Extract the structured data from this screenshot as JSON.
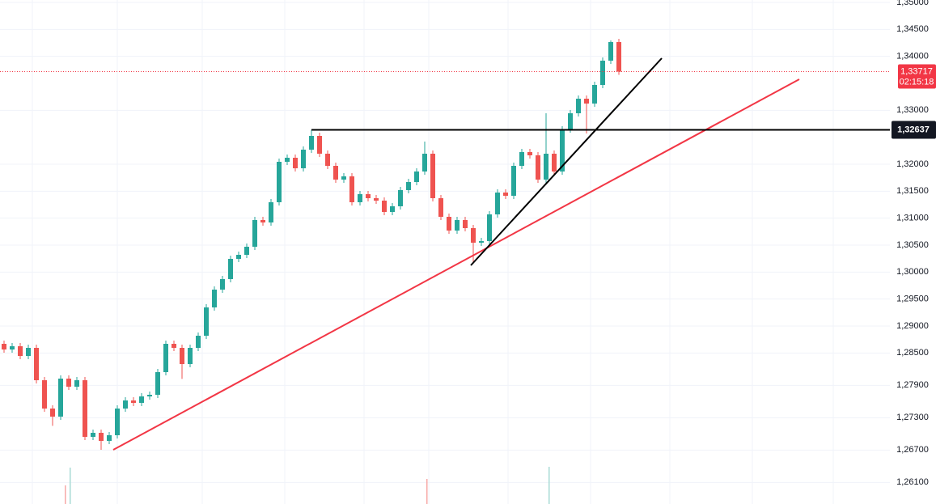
{
  "chart_data": {
    "type": "candlestick",
    "open": [
      1.2867,
      1.28565,
      1.28625,
      1.28445,
      1.28595,
      1.27995,
      1.2747,
      1.2732,
      1.28025,
      1.27875,
      1.27995,
      1.26945,
      1.2702,
      1.2687,
      1.26975,
      1.2747,
      1.2762,
      1.27575,
      1.27695,
      1.27725,
      1.28145,
      1.2867,
      1.28595,
      1.28295,
      1.28595,
      1.2882,
      1.29345,
      1.29675,
      1.2987,
      1.30245,
      1.3032,
      1.3047,
      1.30965,
      1.3092,
      1.31295,
      1.32045,
      1.3212,
      1.31925,
      1.3227,
      1.32525,
      1.32195,
      1.3197,
      1.31715,
      1.31775,
      1.31295,
      1.31445,
      1.3137,
      1.31325,
      1.31115,
      1.3122,
      1.3152,
      1.3167,
      1.31865,
      1.32195,
      1.3137,
      1.31025,
      1.3077,
      1.30965,
      1.30815,
      1.30545,
      1.30575,
      1.3107,
      1.31475,
      1.31415,
      1.3197,
      1.32225,
      1.32165,
      1.31715,
      1.32195,
      1.31865,
      1.32645,
      1.32945,
      1.33215,
      1.33125,
      1.3347,
      1.3392,
      1.34265
    ],
    "high": [
      1.2873,
      1.28685,
      1.28685,
      1.28655,
      1.28655,
      1.28055,
      1.2753,
      1.28085,
      1.28085,
      1.28055,
      1.28055,
      1.2708,
      1.2708,
      1.27035,
      1.2753,
      1.2768,
      1.2768,
      1.27755,
      1.27785,
      1.28205,
      1.2873,
      1.2873,
      1.28655,
      1.28655,
      1.2888,
      1.29405,
      1.29735,
      1.2993,
      1.30305,
      1.3038,
      1.3053,
      1.31025,
      1.31025,
      1.31355,
      1.32105,
      1.3218,
      1.3218,
      1.3233,
      1.32637,
      1.32585,
      1.32255,
      1.3203,
      1.31835,
      1.31835,
      1.31505,
      1.31505,
      1.3143,
      1.31385,
      1.3128,
      1.3158,
      1.3173,
      1.31925,
      1.3242,
      1.32255,
      1.3143,
      1.31085,
      1.31025,
      1.31025,
      1.30875,
      1.30635,
      1.3113,
      1.31535,
      1.31535,
      1.3203,
      1.32285,
      1.32285,
      1.32225,
      1.32945,
      1.32255,
      1.32705,
      1.33005,
      1.33275,
      1.33275,
      1.3353,
      1.3398,
      1.34295,
      1.34325
    ],
    "low": [
      1.28505,
      1.28505,
      1.28385,
      1.28385,
      1.27935,
      1.2741,
      1.2715,
      1.2726,
      1.27815,
      1.27815,
      1.26885,
      1.26885,
      1.26705,
      1.2681,
      1.26915,
      1.2741,
      1.27515,
      1.27515,
      1.27635,
      1.27665,
      1.28085,
      1.28535,
      1.2802,
      1.28235,
      1.28535,
      1.2876,
      1.29285,
      1.29615,
      1.2981,
      1.30185,
      1.3026,
      1.3041,
      1.3086,
      1.3086,
      1.31235,
      1.31985,
      1.31865,
      1.31865,
      1.3221,
      1.32135,
      1.3191,
      1.31655,
      1.31655,
      1.31235,
      1.31235,
      1.3131,
      1.31265,
      1.31055,
      1.31055,
      1.3116,
      1.3146,
      1.3161,
      1.31805,
      1.3131,
      1.30965,
      1.3071,
      1.3071,
      1.30755,
      1.3017,
      1.30485,
      1.30515,
      1.3101,
      1.31355,
      1.31355,
      1.3191,
      1.32105,
      1.31655,
      1.31655,
      1.31805,
      1.31805,
      1.32585,
      1.32885,
      1.3257,
      1.33065,
      1.3341,
      1.3386,
      1.33657
    ],
    "close": [
      1.28565,
      1.28625,
      1.28445,
      1.28595,
      1.27995,
      1.2747,
      1.2732,
      1.28025,
      1.27875,
      1.27995,
      1.26945,
      1.2702,
      1.2687,
      1.26975,
      1.2747,
      1.2762,
      1.27575,
      1.27695,
      1.27725,
      1.28145,
      1.2867,
      1.28595,
      1.28295,
      1.28595,
      1.2882,
      1.29345,
      1.29675,
      1.2987,
      1.30245,
      1.3032,
      1.3047,
      1.30965,
      1.3092,
      1.31295,
      1.32045,
      1.3212,
      1.31925,
      1.3227,
      1.32525,
      1.32195,
      1.3197,
      1.31715,
      1.31775,
      1.31295,
      1.31445,
      1.3137,
      1.31325,
      1.31115,
      1.3122,
      1.3152,
      1.3167,
      1.31865,
      1.32195,
      1.3137,
      1.31025,
      1.3077,
      1.30965,
      1.30815,
      1.30545,
      1.30575,
      1.3107,
      1.31475,
      1.31415,
      1.3197,
      1.32225,
      1.32165,
      1.31715,
      1.32195,
      1.31865,
      1.32645,
      1.32945,
      1.33215,
      1.33125,
      1.3347,
      1.3392,
      1.34265,
      1.33717
    ],
    "up_color": "#26a69a",
    "down_color": "#ef5350",
    "ylim": [
      1.257,
      1.35045
    ],
    "yticks": [
      {
        "value": 1.35,
        "label": "1,35000"
      },
      {
        "value": 1.345,
        "label": "1,34500"
      },
      {
        "value": 1.34,
        "label": "1,34000"
      },
      {
        "value": 1.33,
        "label": "1,33000"
      },
      {
        "value": 1.32,
        "label": "1,32000"
      },
      {
        "value": 1.315,
        "label": "1,31500"
      },
      {
        "value": 1.31,
        "label": "1,31000"
      },
      {
        "value": 1.305,
        "label": "1,30500"
      },
      {
        "value": 1.3,
        "label": "1,30000"
      },
      {
        "value": 1.295,
        "label": "1,29500"
      },
      {
        "value": 1.29,
        "label": "1,29000"
      },
      {
        "value": 1.285,
        "label": "1,28500"
      },
      {
        "value": 1.279,
        "label": "1,27900"
      },
      {
        "value": 1.273,
        "label": "1,27300"
      },
      {
        "value": 1.267,
        "label": "1,26700"
      },
      {
        "value": 1.261,
        "label": "1,26100"
      }
    ],
    "grid": true,
    "level": {
      "value": 1.32637,
      "label": "1,32637"
    },
    "last_price": {
      "value": 1.33717,
      "label": "1,33717"
    },
    "countdown": "02:15:18",
    "last_price_color": "#f23645"
  }
}
